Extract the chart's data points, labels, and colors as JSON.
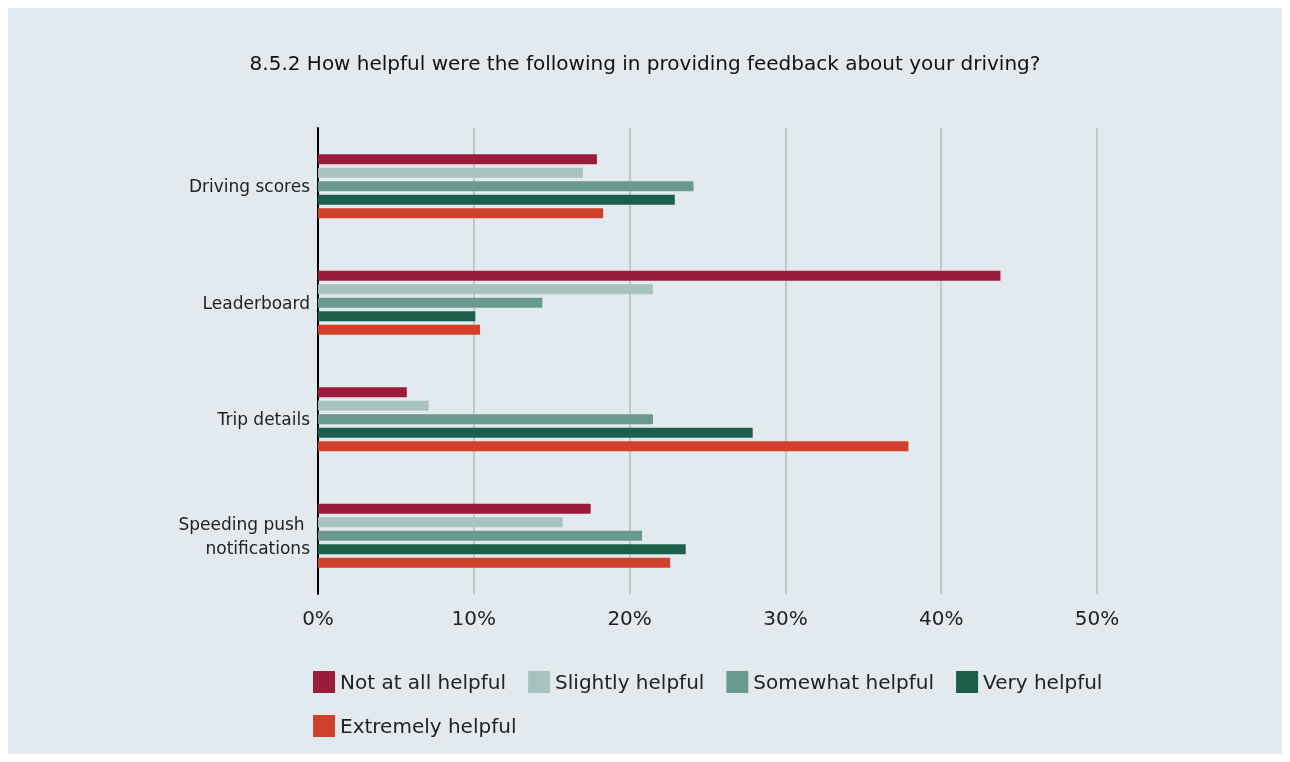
{
  "chart_data": {
    "type": "bar",
    "orientation": "horizontal",
    "title": "8.5.2 How helpful were the following in providing feedback about your driving?",
    "categories": [
      "Driving scores",
      "Leaderboard",
      "Trip details",
      "Speeding push notifications"
    ],
    "series": [
      {
        "name": "Not at all helpful",
        "color": "#9b1b3b",
        "values": [
          17.9,
          43.8,
          5.7,
          17.5
        ]
      },
      {
        "name": "Slightly helpful",
        "color": "#a8c3be",
        "values": [
          17.0,
          21.5,
          7.1,
          15.7
        ]
      },
      {
        "name": "Somewhat helpful",
        "color": "#6a9a8f",
        "values": [
          24.1,
          14.4,
          21.5,
          20.8
        ]
      },
      {
        "name": "Very helpful",
        "color": "#1b5e4a",
        "values": [
          22.9,
          10.1,
          27.9,
          23.6
        ]
      },
      {
        "name": "Extremely helpful",
        "color": "#d1402a",
        "values": [
          18.3,
          10.4,
          37.9,
          22.6
        ]
      }
    ],
    "xlim": [
      0,
      50
    ],
    "xticks": [
      {
        "value": 0,
        "label": "0%"
      },
      {
        "value": 10,
        "label": "10%"
      },
      {
        "value": 20,
        "label": "20%"
      },
      {
        "value": 30,
        "label": "30%"
      },
      {
        "value": 40,
        "label": "40%"
      },
      {
        "value": 50,
        "label": "50%"
      }
    ],
    "grid": "x",
    "legend": "bottom"
  }
}
